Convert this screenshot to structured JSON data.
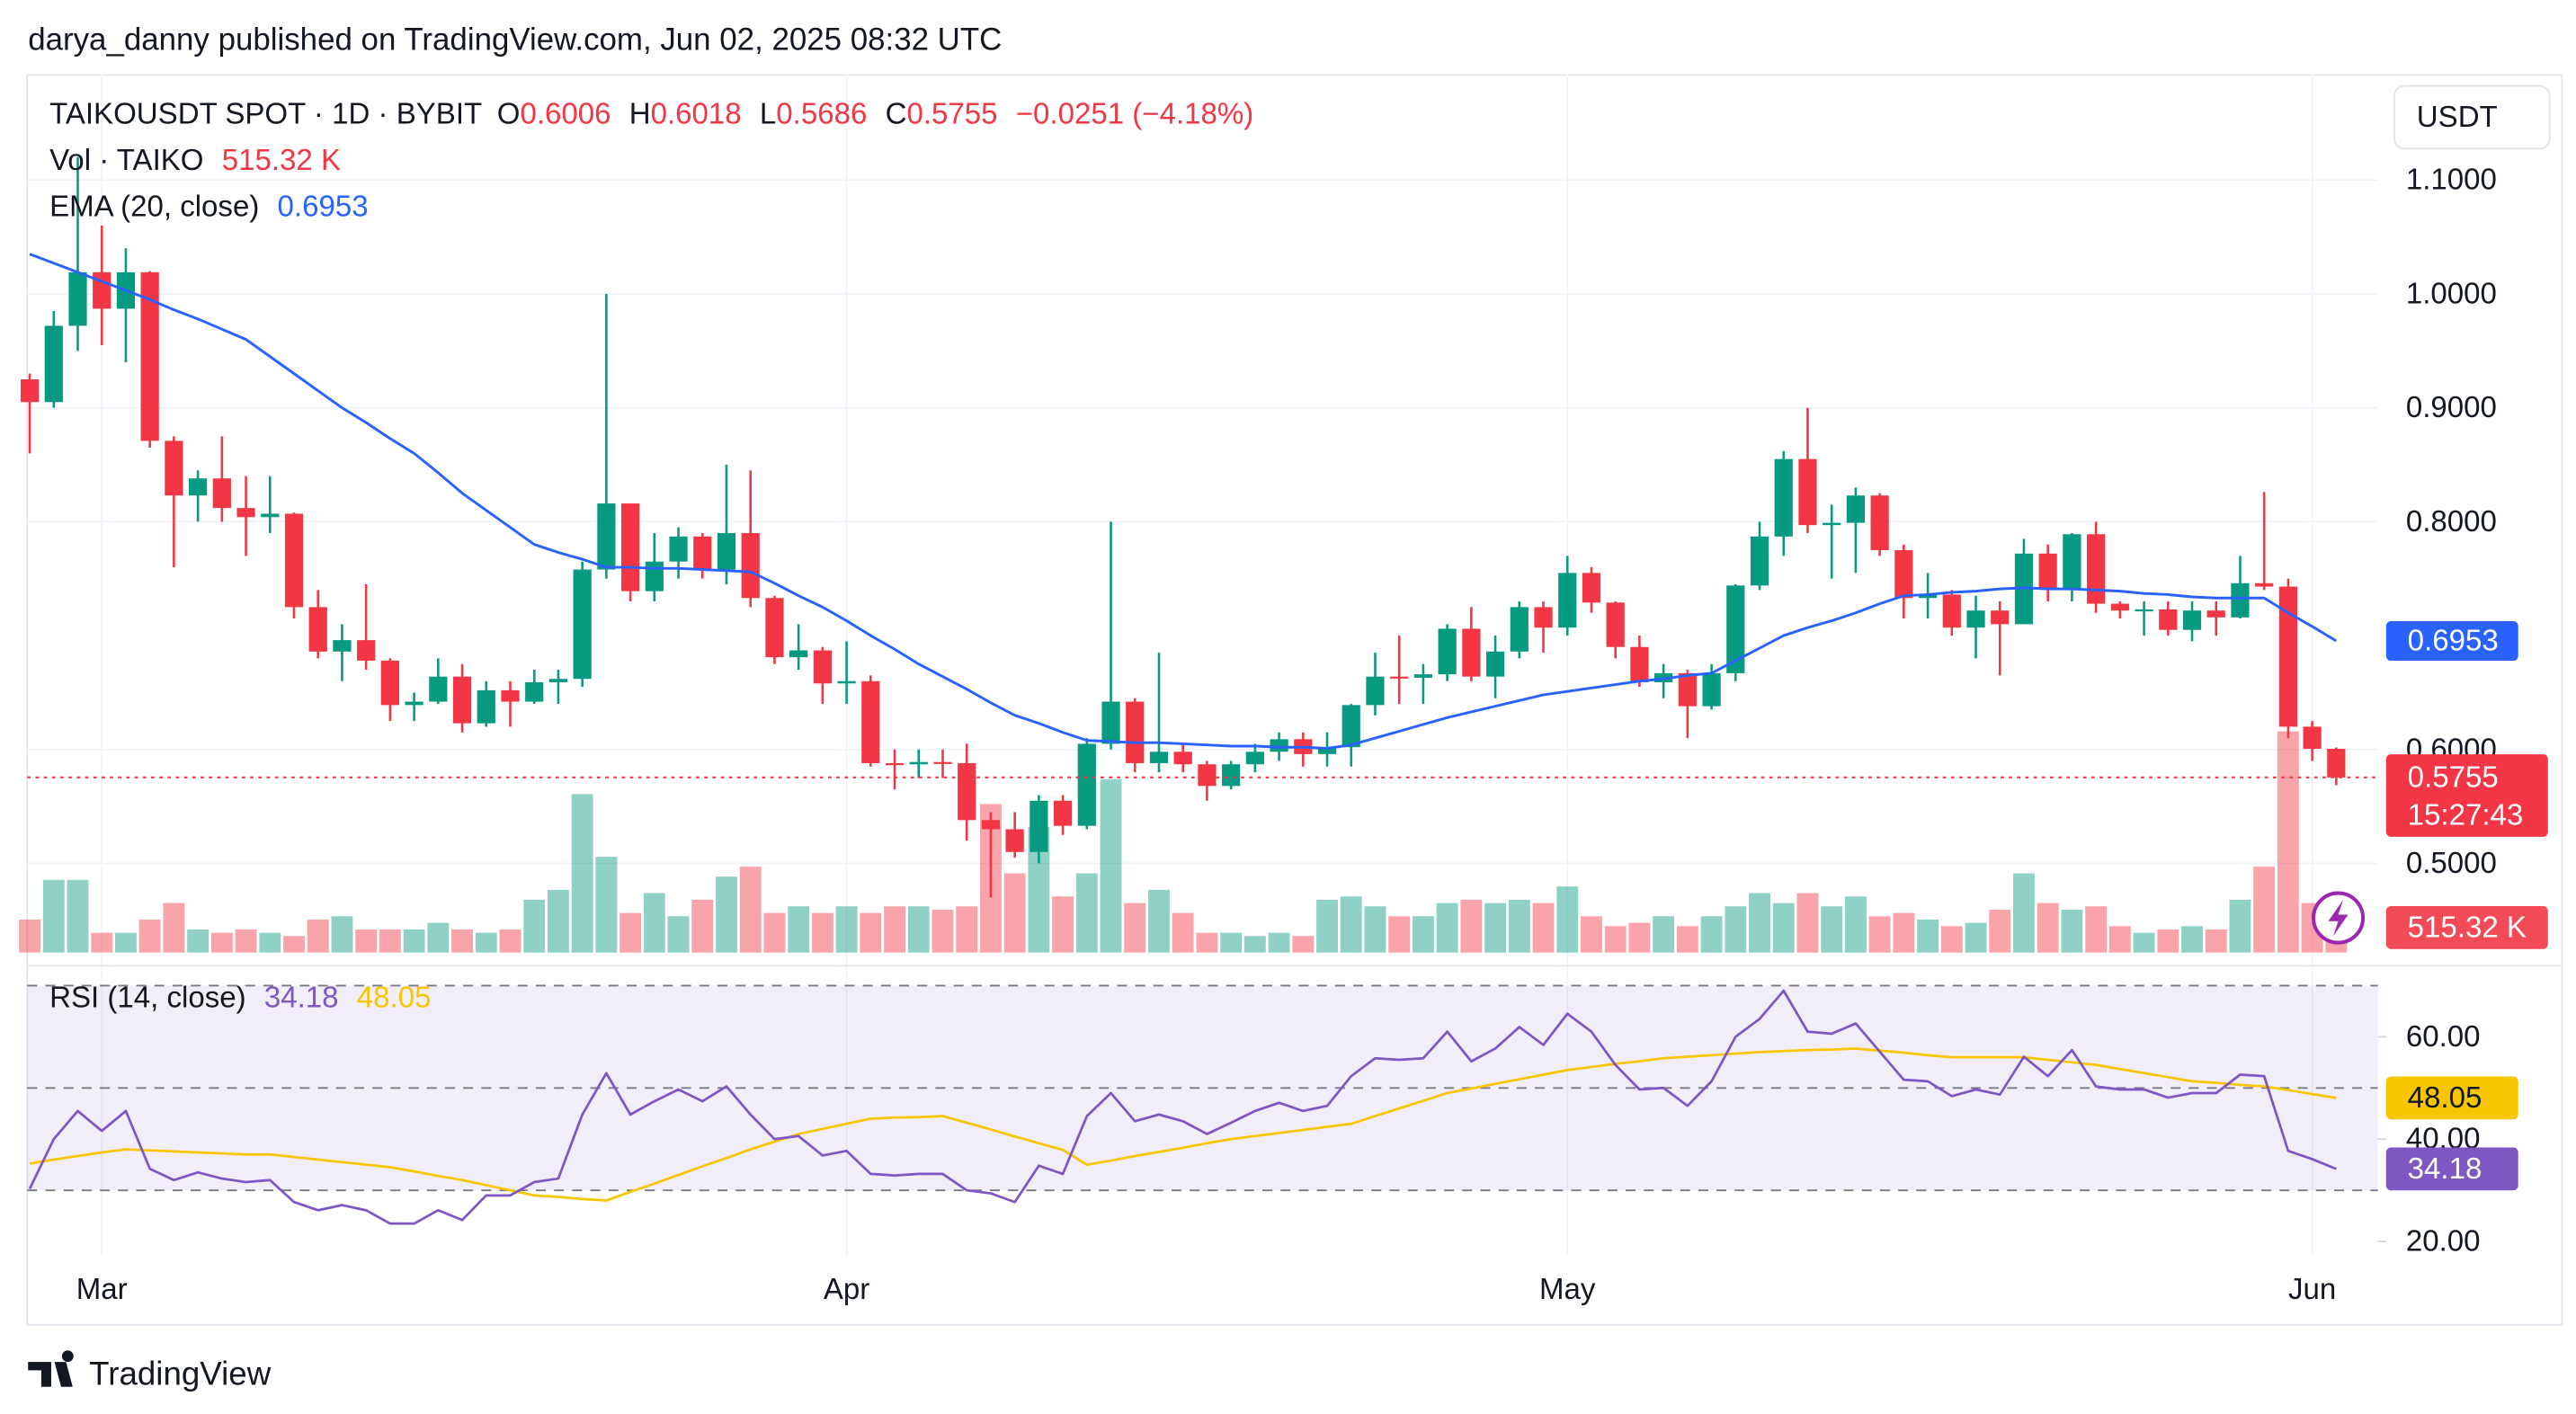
{
  "chart_data": {
    "type": "candlestick",
    "header": "darya_danny published on TradingView.com, Jun 02, 2025 08:32 UTC",
    "symbol": "TAIKOUSDT SPOT · 1D · BYBIT",
    "o_label": "O",
    "h_label": "H",
    "l_label": "L",
    "c_label": "C",
    "change": "−0.0251 (−4.18%)",
    "countdown": "15:27:43",
    "currency": "USDT",
    "brand": "TradingView",
    "up_color": "#089981",
    "down_color": "#f23645",
    "categories": [
      null,
      null,
      null,
      "Mar",
      null,
      null,
      null,
      null,
      null,
      null,
      null,
      null,
      null,
      null,
      null,
      null,
      null,
      null,
      null,
      null,
      null,
      null,
      null,
      null,
      null,
      null,
      null,
      null,
      null,
      null,
      null,
      null,
      null,
      null,
      "Apr",
      null,
      null,
      null,
      null,
      null,
      null,
      null,
      null,
      null,
      null,
      null,
      null,
      null,
      null,
      null,
      null,
      null,
      null,
      null,
      null,
      null,
      null,
      null,
      null,
      null,
      null,
      null,
      null,
      null,
      "May",
      null,
      null,
      null,
      null,
      null,
      null,
      null,
      null,
      null,
      null,
      null,
      null,
      null,
      null,
      null,
      null,
      null,
      null,
      null,
      null,
      null,
      null,
      null,
      null,
      null,
      null,
      null,
      null,
      null,
      null,
      "Jun",
      null
    ],
    "candles": {
      "open": [
        0.925,
        0.905,
        0.972,
        1.019,
        0.987,
        1.019,
        0.871,
        0.823,
        0.838,
        0.812,
        0.804,
        0.807,
        0.725,
        0.686,
        0.696,
        0.678,
        0.639,
        0.642,
        0.664,
        0.623,
        0.652,
        0.642,
        0.659,
        0.662,
        0.758,
        0.816,
        0.739,
        0.765,
        0.787,
        0.758,
        0.79,
        0.733,
        0.681,
        0.687,
        0.658,
        0.66,
        0.588,
        0.587,
        0.589,
        0.588,
        0.538,
        0.53,
        0.51,
        0.555,
        0.533,
        0.605,
        0.642,
        0.588,
        0.598,
        0.587,
        0.568,
        0.587,
        0.598,
        0.609,
        0.596,
        0.602,
        0.639,
        0.664,
        0.663,
        0.666,
        0.706,
        0.664,
        0.686,
        0.725,
        0.707,
        0.755,
        0.729,
        0.69,
        0.659,
        0.667,
        0.638,
        0.667,
        0.744,
        0.787,
        0.855,
        0.797,
        0.799,
        0.823,
        0.775,
        0.733,
        0.736,
        0.707,
        0.722,
        0.71,
        0.772,
        0.741,
        0.789,
        0.728,
        0.722,
        0.723,
        0.705,
        0.722,
        0.716,
        0.746,
        0.743,
        0.62,
        0.6006
      ],
      "high": [
        0.93,
        0.985,
        1.12,
        1.06,
        1.04,
        1.02,
        0.875,
        0.845,
        0.875,
        0.84,
        0.84,
        0.808,
        0.74,
        0.71,
        0.745,
        0.68,
        0.65,
        0.68,
        0.675,
        0.66,
        0.66,
        0.67,
        0.67,
        0.765,
        1.0,
        0.816,
        0.79,
        0.795,
        0.79,
        0.85,
        0.845,
        0.735,
        0.71,
        0.69,
        0.695,
        0.665,
        0.6,
        0.6,
        0.6,
        0.605,
        0.545,
        0.545,
        0.56,
        0.56,
        0.61,
        0.8,
        0.645,
        0.685,
        0.605,
        0.59,
        0.59,
        0.605,
        0.615,
        0.615,
        0.615,
        0.64,
        0.685,
        0.7,
        0.675,
        0.71,
        0.725,
        0.7,
        0.73,
        0.73,
        0.77,
        0.76,
        0.73,
        0.7,
        0.675,
        0.67,
        0.675,
        0.745,
        0.8,
        0.862,
        0.9,
        0.815,
        0.83,
        0.825,
        0.78,
        0.755,
        0.74,
        0.735,
        0.73,
        0.785,
        0.78,
        0.79,
        0.8,
        0.73,
        0.73,
        0.73,
        0.73,
        0.73,
        0.77,
        0.826,
        0.75,
        0.625,
        0.6018
      ],
      "low": [
        0.86,
        0.9,
        0.95,
        0.955,
        0.94,
        0.865,
        0.76,
        0.8,
        0.8,
        0.77,
        0.79,
        0.715,
        0.68,
        0.66,
        0.67,
        0.625,
        0.625,
        0.64,
        0.615,
        0.62,
        0.62,
        0.64,
        0.64,
        0.655,
        0.75,
        0.73,
        0.73,
        0.75,
        0.75,
        0.745,
        0.725,
        0.675,
        0.67,
        0.64,
        0.64,
        0.585,
        0.565,
        0.575,
        0.575,
        0.52,
        0.47,
        0.505,
        0.5,
        0.525,
        0.53,
        0.6,
        0.58,
        0.58,
        0.58,
        0.555,
        0.565,
        0.58,
        0.59,
        0.585,
        0.585,
        0.585,
        0.63,
        0.64,
        0.64,
        0.66,
        0.66,
        0.645,
        0.68,
        0.685,
        0.7,
        0.72,
        0.68,
        0.655,
        0.645,
        0.61,
        0.635,
        0.66,
        0.74,
        0.77,
        0.79,
        0.75,
        0.755,
        0.77,
        0.715,
        0.715,
        0.7,
        0.68,
        0.665,
        0.71,
        0.73,
        0.73,
        0.72,
        0.715,
        0.7,
        0.7,
        0.695,
        0.7,
        0.715,
        0.74,
        0.61,
        0.59,
        0.5686
      ],
      "close": [
        0.905,
        0.972,
        1.019,
        0.987,
        1.019,
        0.871,
        0.823,
        0.838,
        0.812,
        0.804,
        0.807,
        0.725,
        0.686,
        0.696,
        0.678,
        0.639,
        0.642,
        0.664,
        0.623,
        0.652,
        0.642,
        0.659,
        0.662,
        0.758,
        0.816,
        0.739,
        0.765,
        0.787,
        0.758,
        0.79,
        0.733,
        0.681,
        0.687,
        0.658,
        0.66,
        0.588,
        0.587,
        0.589,
        0.588,
        0.538,
        0.53,
        0.51,
        0.555,
        0.533,
        0.605,
        0.642,
        0.588,
        0.598,
        0.587,
        0.568,
        0.587,
        0.598,
        0.609,
        0.596,
        0.602,
        0.639,
        0.664,
        0.663,
        0.666,
        0.706,
        0.664,
        0.686,
        0.725,
        0.707,
        0.755,
        0.729,
        0.69,
        0.659,
        0.667,
        0.638,
        0.667,
        0.744,
        0.787,
        0.855,
        0.797,
        0.799,
        0.823,
        0.775,
        0.733,
        0.736,
        0.707,
        0.722,
        0.71,
        0.772,
        0.741,
        0.789,
        0.728,
        0.722,
        0.723,
        0.705,
        0.722,
        0.716,
        0.746,
        0.743,
        0.62,
        0.6006,
        0.5755
      ]
    },
    "ylim": [
      0.4217,
      1.1928
    ],
    "yticks": [
      {
        "value": 0.5,
        "label": "0.5000"
      },
      {
        "value": 0.6,
        "label": "0.6000"
      },
      {
        "value": 0.8,
        "label": "0.8000"
      },
      {
        "value": 0.9,
        "label": "0.9000"
      },
      {
        "value": 1.0,
        "label": "1.0000"
      },
      {
        "value": 1.1,
        "label": "1.1000"
      }
    ],
    "volume": {
      "label": "Vol · TAIKO",
      "vlim": [
        0,
        5100000
      ],
      "values": [
        680000,
        1496000,
        1496000,
        408000,
        408000,
        680000,
        1020000,
        476000,
        408000,
        476000,
        408000,
        340000,
        680000,
        748000,
        476000,
        476000,
        476000,
        612000,
        476000,
        408000,
        476000,
        1088000,
        1292000,
        3264000,
        1972000,
        816000,
        1224000,
        748000,
        1088000,
        1564000,
        1768000,
        816000,
        952000,
        816000,
        952000,
        816000,
        952000,
        952000,
        884000,
        952000,
        3060000,
        1632000,
        2584000,
        1156000,
        1632000,
        3570000,
        1020000,
        1292000,
        816000,
        408000,
        408000,
        340000,
        408000,
        340000,
        1088000,
        1156000,
        952000,
        748000,
        748000,
        1020000,
        1088000,
        1020000,
        1088000,
        1020000,
        1360000,
        748000,
        544000,
        612000,
        748000,
        544000,
        748000,
        952000,
        1224000,
        1020000,
        1224000,
        952000,
        1156000,
        748000,
        816000,
        680000,
        544000,
        612000,
        884000,
        1632000,
        1020000,
        884000,
        952000,
        544000,
        408000,
        476000,
        544000,
        476000,
        1088000,
        1768000,
        4556000,
        1020000,
        515320
      ],
      "value_labels": {
        "96": "515.32 K"
      }
    },
    "ema": {
      "label": "EMA (20, close)",
      "color": "#2962ff",
      "values": [
        1.035,
        1.027,
        1.019,
        1.011,
        1.003,
        0.995,
        0.986,
        0.978,
        0.969,
        0.96,
        0.945,
        0.93,
        0.915,
        0.9,
        0.887,
        0.873,
        0.86,
        0.843,
        0.825,
        0.81,
        0.795,
        0.78,
        0.773,
        0.767,
        0.76,
        0.76,
        0.759,
        0.759,
        0.758,
        0.757,
        0.756,
        0.746,
        0.735,
        0.725,
        0.713,
        0.7,
        0.688,
        0.675,
        0.664,
        0.653,
        0.641,
        0.63,
        0.623,
        0.615,
        0.608,
        0.607,
        0.606,
        0.606,
        0.605,
        0.604,
        0.603,
        0.603,
        0.602,
        0.602,
        0.601,
        0.604,
        0.61,
        0.616,
        0.622,
        0.628,
        0.633,
        0.638,
        0.643,
        0.648,
        0.651,
        0.654,
        0.657,
        0.66,
        0.662,
        0.665,
        0.667,
        0.678,
        0.689,
        0.7,
        0.707,
        0.713,
        0.72,
        0.728,
        0.735,
        0.736,
        0.738,
        0.739,
        0.741,
        0.742,
        0.741,
        0.741,
        0.74,
        0.739,
        0.737,
        0.736,
        0.734,
        0.733,
        0.733,
        0.733,
        0.72,
        0.708,
        0.6953
      ]
    },
    "rsi": {
      "label": "RSI (14, close)",
      "color": "#7e57c2",
      "ylim": [
        17.42,
        72.26
      ],
      "yticks": [
        {
          "value": 60,
          "label": "60.00"
        },
        {
          "value": 40,
          "label": "40.00"
        },
        {
          "value": 20,
          "label": "20.00"
        }
      ],
      "levels": [
        70,
        50,
        30
      ],
      "values": [
        30.3,
        40,
        45.5,
        41.6,
        45.5,
        34.2,
        32,
        33.5,
        32.3,
        31.6,
        32,
        27.7,
        26.1,
        27.1,
        26.1,
        23.5,
        23.5,
        26.1,
        24.2,
        29,
        29,
        31.6,
        32.3,
        44.8,
        52.9,
        44.8,
        47.4,
        49.7,
        47.4,
        50.3,
        44.8,
        40,
        40.6,
        36.8,
        37.7,
        33.2,
        32.9,
        33.2,
        33.2,
        30,
        29.4,
        27.7,
        34.8,
        33.2,
        44.5,
        49,
        43.5,
        44.8,
        43.5,
        41,
        43.2,
        45.5,
        47.1,
        45.5,
        46.5,
        52.3,
        55.8,
        55.5,
        55.8,
        61,
        55.2,
        57.7,
        61.9,
        58.4,
        64.5,
        61,
        54.5,
        49.7,
        50,
        46.5,
        51.3,
        60,
        63.5,
        69,
        61,
        60.6,
        62.6,
        57.1,
        51.6,
        51.3,
        48.4,
        49.7,
        48.7,
        56.1,
        52.3,
        57.4,
        50.3,
        49.7,
        49.7,
        48.1,
        49,
        49,
        52.6,
        52.3,
        37.7,
        36.1,
        34.18
      ],
      "ma": {
        "color": "#f7c600",
        "values": [
          35.2,
          36,
          36.7,
          37.4,
          38,
          37.8,
          37.6,
          37.4,
          37.2,
          37,
          37,
          36.5,
          36,
          35.5,
          35,
          34.5,
          33.7,
          32.8,
          32,
          31,
          30,
          29,
          28.7,
          28.3,
          28,
          29.7,
          31.3,
          33,
          34.7,
          36.3,
          38,
          39.5,
          41,
          42,
          43,
          44,
          44.2,
          44.3,
          44.5,
          43.2,
          41.9,
          40.5,
          39.2,
          37.9,
          35,
          35.8,
          36.7,
          37.5,
          38.3,
          39.2,
          40,
          40.6,
          41.2,
          41.8,
          42.4,
          43,
          44.5,
          46,
          47.5,
          49,
          49.9,
          50.8,
          51.7,
          52.6,
          53.5,
          54.1,
          54.7,
          55.2,
          55.8,
          56.1,
          56.4,
          56.7,
          57,
          57.2,
          57.4,
          57.5,
          57.7,
          57.3,
          56.9,
          56.4,
          56,
          56,
          56,
          56,
          55.5,
          55,
          54.5,
          53.7,
          52.9,
          52.1,
          51.3,
          51,
          50.6,
          50.3,
          49.6,
          48.8,
          48.05
        ]
      }
    }
  }
}
